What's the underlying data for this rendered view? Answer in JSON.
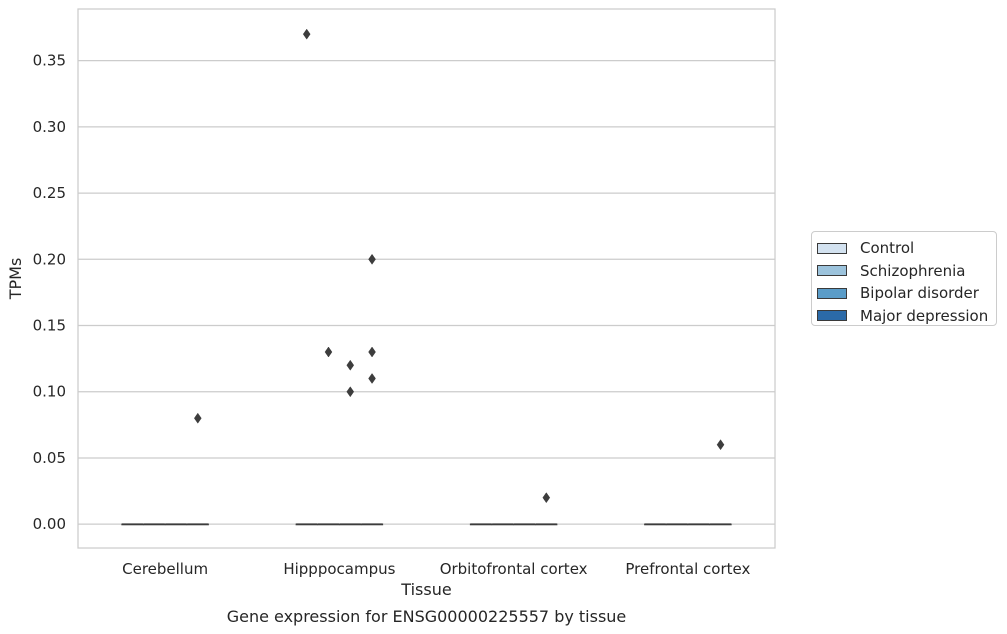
{
  "chart_data": {
    "type": "box",
    "title": "Gene expression for ENSG00000225557 by tissue",
    "xlabel": "Tissue",
    "ylabel": "TPMs",
    "categories": [
      "Cerebellum",
      "Hipppocampus",
      "Orbitofrontal cortex",
      "Prefrontal cortex"
    ],
    "ylim": [
      -0.018,
      0.389
    ],
    "yticks": [
      "0.00",
      "0.05",
      "0.10",
      "0.15",
      "0.20",
      "0.25",
      "0.30",
      "0.35"
    ],
    "grid": true,
    "legend_position": "right",
    "series": [
      {
        "name": "Control",
        "color": "#d3e2f0",
        "boxes": [
          {
            "category": "Cerebellum",
            "q1": 0,
            "median": 0,
            "q3": 0,
            "whisker_low": 0,
            "whisker_high": 0,
            "outliers": []
          },
          {
            "category": "Hipppocampus",
            "q1": 0,
            "median": 0,
            "q3": 0,
            "whisker_low": 0,
            "whisker_high": 0,
            "outliers": [
              0.37
            ]
          },
          {
            "category": "Orbitofrontal cortex",
            "q1": 0,
            "median": 0,
            "q3": 0,
            "whisker_low": 0,
            "whisker_high": 0,
            "outliers": []
          },
          {
            "category": "Prefrontal cortex",
            "q1": 0,
            "median": 0,
            "q3": 0,
            "whisker_low": 0,
            "whisker_high": 0,
            "outliers": []
          }
        ]
      },
      {
        "name": "Schizophrenia",
        "color": "#9cc3dc",
        "boxes": [
          {
            "category": "Cerebellum",
            "q1": 0,
            "median": 0,
            "q3": 0,
            "whisker_low": 0,
            "whisker_high": 0,
            "outliers": []
          },
          {
            "category": "Hipppocampus",
            "q1": 0,
            "median": 0,
            "q3": 0,
            "whisker_low": 0,
            "whisker_high": 0,
            "outliers": [
              0.13
            ]
          },
          {
            "category": "Orbitofrontal cortex",
            "q1": 0,
            "median": 0,
            "q3": 0,
            "whisker_low": 0,
            "whisker_high": 0,
            "outliers": []
          },
          {
            "category": "Prefrontal cortex",
            "q1": 0,
            "median": 0,
            "q3": 0,
            "whisker_low": 0,
            "whisker_high": 0,
            "outliers": []
          }
        ]
      },
      {
        "name": "Bipolar disorder",
        "color": "#5a9cc8",
        "boxes": [
          {
            "category": "Cerebellum",
            "q1": 0,
            "median": 0,
            "q3": 0,
            "whisker_low": 0,
            "whisker_high": 0,
            "outliers": []
          },
          {
            "category": "Hipppocampus",
            "q1": 0,
            "median": 0,
            "q3": 0,
            "whisker_low": 0,
            "whisker_high": 0,
            "outliers": [
              0.12,
              0.1
            ]
          },
          {
            "category": "Orbitofrontal cortex",
            "q1": 0,
            "median": 0,
            "q3": 0,
            "whisker_low": 0,
            "whisker_high": 0,
            "outliers": []
          },
          {
            "category": "Prefrontal cortex",
            "q1": 0,
            "median": 0,
            "q3": 0,
            "whisker_low": 0,
            "whisker_high": 0,
            "outliers": []
          }
        ]
      },
      {
        "name": "Major depression",
        "color": "#2b6aa8",
        "boxes": [
          {
            "category": "Cerebellum",
            "q1": 0,
            "median": 0,
            "q3": 0,
            "whisker_low": 0,
            "whisker_high": 0,
            "outliers": [
              0.08
            ]
          },
          {
            "category": "Hipppocampus",
            "q1": 0,
            "median": 0,
            "q3": 0,
            "whisker_low": 0,
            "whisker_high": 0,
            "outliers": [
              0.2,
              0.13,
              0.11
            ]
          },
          {
            "category": "Orbitofrontal cortex",
            "q1": 0,
            "median": 0,
            "q3": 0,
            "whisker_low": 0,
            "whisker_high": 0,
            "outliers": [
              0.02
            ]
          },
          {
            "category": "Prefrontal cortex",
            "q1": 0,
            "median": 0,
            "q3": 0,
            "whisker_low": 0,
            "whisker_high": 0,
            "outliers": [
              0.06
            ]
          }
        ]
      }
    ]
  }
}
